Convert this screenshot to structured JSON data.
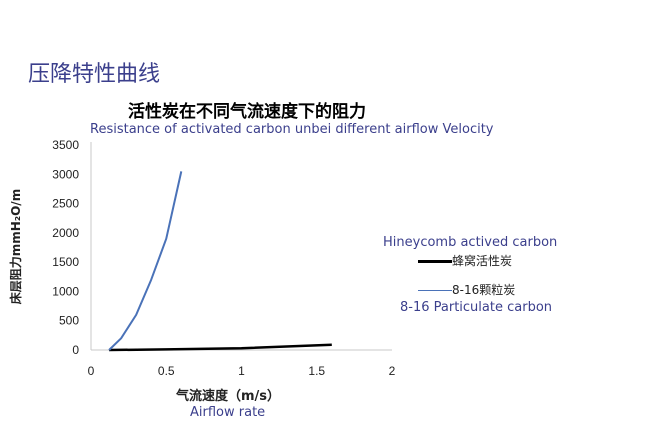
{
  "slide_title": "压降特性曲线",
  "chart_data": {
    "type": "line",
    "title": "活性炭在不同气流速度下的阻力",
    "subtitle": "Resistance of activated carbon unbei different airflow Velocity",
    "xlabel": "气流速度（m/s）",
    "xlabel_en": "Airflow rate",
    "ylabel": "床层阻力mmH₂O/m",
    "xlim": [
      0,
      2
    ],
    "ylim": [
      0,
      3500
    ],
    "x_ticks": [
      "0",
      "0.5",
      "1",
      "1.5",
      "2"
    ],
    "y_ticks": [
      "0",
      "500",
      "1000",
      "1500",
      "2000",
      "2500",
      "3000",
      "3500"
    ],
    "grid": false,
    "legend_position": "right",
    "legend_header": "Hineycomb actived carbon",
    "legend_footer": "8-16 Particulate carbon",
    "series": [
      {
        "name": "蜂窝活性炭",
        "color": "#000000",
        "x": [
          0.12,
          0.5,
          1.0,
          1.6
        ],
        "y": [
          0,
          10,
          30,
          90
        ]
      },
      {
        "name": "8-16颗粒炭",
        "color": "#4a72b8",
        "x": [
          0.12,
          0.2,
          0.3,
          0.4,
          0.5,
          0.6
        ],
        "y": [
          0,
          200,
          600,
          1200,
          1900,
          3050
        ]
      }
    ]
  }
}
